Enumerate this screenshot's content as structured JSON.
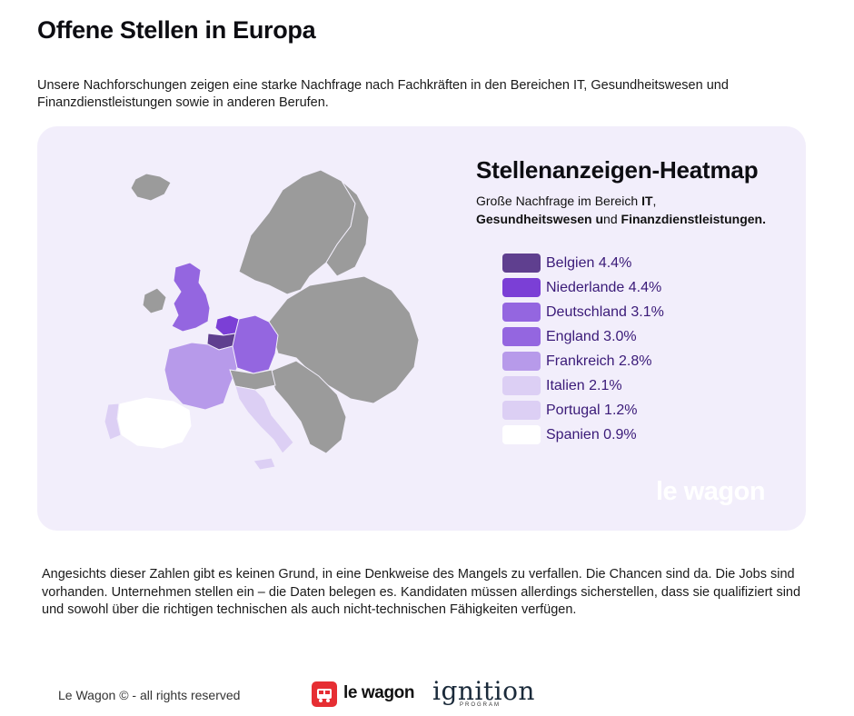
{
  "page": {
    "title": "Offene Stellen in Europa",
    "intro": "Unsere Nachforschungen zeigen eine starke Nachfrage nach Fachkräften in den Bereichen IT, Gesundheitswesen und Finanzdienstleistungen sowie in anderen Berufen.",
    "body": "Angesichts dieser Zahlen gibt es keinen Grund, in eine Denkweise des Mangels zu verfallen. Die Chancen sind da. Die Jobs sind vorhanden. Unternehmen stellen ein – die Daten belegen es. Kandidaten müssen allerdings sicherstellen, dass sie qualifiziert sind und sowohl über die richtigen technischen als auch nicht-technischen Fähigkeiten verfügen."
  },
  "heatmap": {
    "title": "Stellenanzeigen-Heatmap",
    "subtitle_parts": {
      "p1": "Große Nachfrage im Bereich ",
      "b1": "IT",
      "p2": ",",
      "b2": "Gesundheitswesen u",
      "p3": "nd ",
      "b3": "Finanzdienstleistungen."
    },
    "legend": [
      {
        "label": "Belgien 4.4%",
        "color": "#5f3f8f"
      },
      {
        "label": "Niederlande 4.4%",
        "color": "#7b3fd6"
      },
      {
        "label": "Deutschland 3.1%",
        "color": "#9466e0"
      },
      {
        "label": "England 3.0%",
        "color": "#9466e0"
      },
      {
        "label": "Frankreich 2.8%",
        "color": "#b79aea"
      },
      {
        "label": "Italien 2.1%",
        "color": "#dccff4"
      },
      {
        "label": "Portugal 1.2%",
        "color": "#dccff4"
      },
      {
        "label": "Spanien 0.9%",
        "color": "#ffffff"
      }
    ],
    "watermark": "le wagon",
    "country_colors": {
      "other": "#9b9b9b",
      "belgium": "#5f3f8f",
      "netherlands": "#7b3fd6",
      "germany": "#9466e0",
      "england": "#9466e0",
      "france": "#b79aea",
      "italy": "#dccff4",
      "portugal": "#dccff4",
      "spain": "#ffffff"
    }
  },
  "footer": {
    "copyright": "Le Wagon © - all rights reserved",
    "brand": "le wagon",
    "partner": "ignition",
    "partner_sub": "PROGRAM"
  }
}
